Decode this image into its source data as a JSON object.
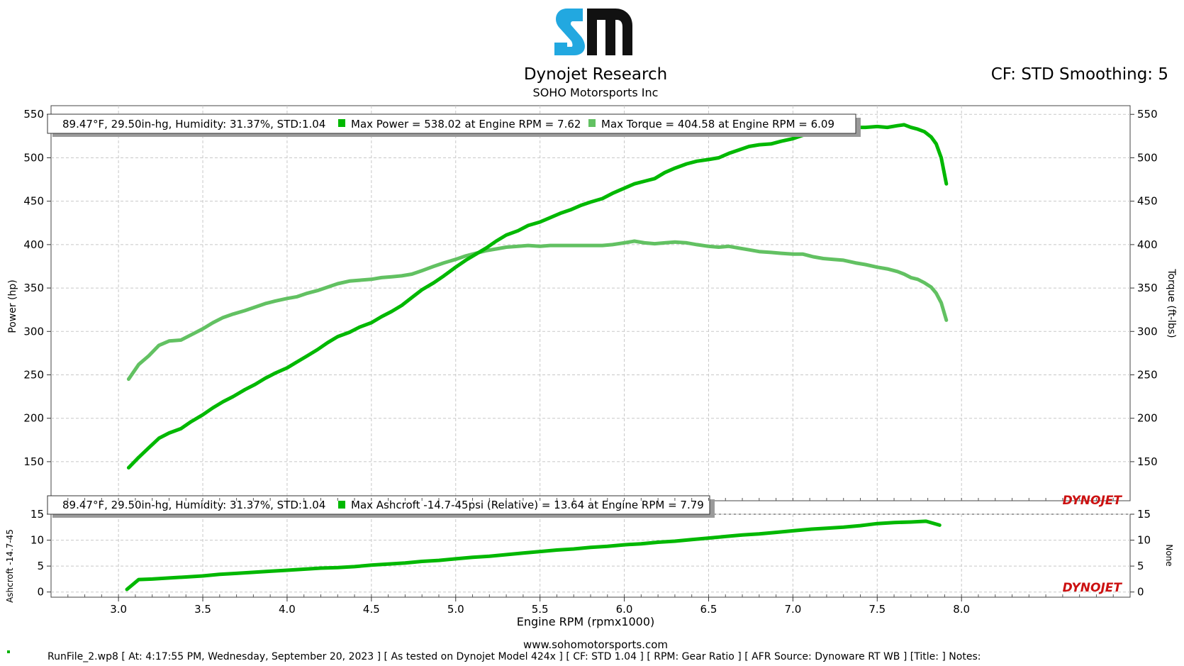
{
  "header": {
    "company": "Dynojet Research",
    "dealer": "SOHO Motorsports Inc",
    "cf_info": "CF: STD Smoothing: 5",
    "logo_text": "SM"
  },
  "colors": {
    "power": "#00b800",
    "torque": "#62c162",
    "ashcroft": "#00b800",
    "grid": "#c8c8c8",
    "brand_red": "#cc1111",
    "logo_blue": "#22a8e0"
  },
  "chart_data": [
    {
      "type": "line",
      "xlabel": "Engine RPM (rpmx1000)",
      "ylabel_left": "Power (hp)",
      "ylabel_right": "Torque (ft-lbs)",
      "xlim": [
        2.6,
        9.0
      ],
      "ylim": [
        105,
        560
      ],
      "xticks": [
        "3.0",
        "3.5",
        "4.0",
        "4.5",
        "5.0",
        "5.5",
        "6.0",
        "6.5",
        "7.0",
        "7.5",
        "8.0"
      ],
      "yticks": [
        "150",
        "200",
        "250",
        "300",
        "350",
        "400",
        "450",
        "500",
        "550"
      ],
      "grid": true,
      "legend_text": {
        "conditions": "89.47°F, 29.50in-hg, Humidity: 31.37%, STD:1.04",
        "power": "Max Power = 538.02 at Engine RPM = 7.62",
        "torque": "Max Torque = 404.58 at Engine RPM = 6.09"
      },
      "watermark": "DYNOJET",
      "series": [
        {
          "name": "Power",
          "x": [
            3.06,
            3.12,
            3.18,
            3.24,
            3.3,
            3.37,
            3.43,
            3.5,
            3.56,
            3.62,
            3.68,
            3.75,
            3.81,
            3.87,
            3.93,
            4.0,
            4.06,
            4.12,
            4.18,
            4.24,
            4.3,
            4.37,
            4.43,
            4.5,
            4.56,
            4.62,
            4.68,
            4.74,
            4.8,
            4.87,
            4.93,
            5.0,
            5.06,
            5.12,
            5.18,
            5.24,
            5.3,
            5.37,
            5.43,
            5.5,
            5.56,
            5.62,
            5.68,
            5.74,
            5.8,
            5.87,
            5.93,
            6.0,
            6.06,
            6.12,
            6.18,
            6.24,
            6.3,
            6.37,
            6.43,
            6.5,
            6.56,
            6.62,
            6.68,
            6.74,
            6.8,
            6.87,
            6.93,
            7.0,
            7.06,
            7.12,
            7.18,
            7.24,
            7.3,
            7.37,
            7.43,
            7.5,
            7.56,
            7.62,
            7.66,
            7.7,
            7.74,
            7.78,
            7.82,
            7.85,
            7.88,
            7.91
          ],
          "values": [
            143,
            155,
            166,
            177,
            183,
            188,
            196,
            204,
            212,
            219,
            225,
            233,
            239,
            246,
            252,
            258,
            265,
            272,
            279,
            287,
            294,
            299,
            305,
            310,
            317,
            323,
            330,
            339,
            348,
            356,
            364,
            374,
            382,
            389,
            396,
            404,
            411,
            416,
            422,
            426,
            431,
            436,
            440,
            445,
            449,
            453,
            459,
            465,
            470,
            473,
            476,
            483,
            488,
            493,
            496,
            498,
            500,
            505,
            509,
            513,
            515,
            516,
            519,
            522,
            526,
            527,
            527,
            530,
            532,
            535,
            535,
            536,
            535,
            537,
            538,
            535,
            533,
            530,
            524,
            516,
            500,
            470
          ]
        },
        {
          "name": "Torque",
          "x": [
            3.06,
            3.12,
            3.18,
            3.24,
            3.3,
            3.37,
            3.43,
            3.5,
            3.56,
            3.62,
            3.68,
            3.75,
            3.81,
            3.87,
            3.93,
            4.0,
            4.06,
            4.12,
            4.18,
            4.24,
            4.3,
            4.37,
            4.43,
            4.5,
            4.56,
            4.62,
            4.68,
            4.74,
            4.8,
            4.87,
            4.93,
            5.0,
            5.06,
            5.12,
            5.18,
            5.24,
            5.3,
            5.37,
            5.43,
            5.5,
            5.56,
            5.62,
            5.68,
            5.74,
            5.8,
            5.87,
            5.93,
            6.0,
            6.06,
            6.12,
            6.18,
            6.24,
            6.3,
            6.37,
            6.43,
            6.5,
            6.56,
            6.62,
            6.68,
            6.74,
            6.8,
            6.87,
            6.93,
            7.0,
            7.06,
            7.12,
            7.18,
            7.24,
            7.3,
            7.37,
            7.43,
            7.5,
            7.56,
            7.62,
            7.66,
            7.7,
            7.74,
            7.78,
            7.82,
            7.85,
            7.88,
            7.91
          ],
          "values": [
            245,
            262,
            272,
            284,
            289,
            290,
            296,
            303,
            310,
            316,
            320,
            324,
            328,
            332,
            335,
            338,
            340,
            344,
            347,
            351,
            355,
            358,
            359,
            360,
            362,
            363,
            364,
            366,
            370,
            375,
            379,
            383,
            387,
            390,
            393,
            395,
            397,
            398,
            399,
            398,
            399,
            399,
            399,
            399,
            399,
            399,
            400,
            402,
            404,
            402,
            401,
            402,
            403,
            402,
            400,
            398,
            397,
            398,
            396,
            394,
            392,
            391,
            390,
            389,
            389,
            386,
            384,
            383,
            382,
            379,
            377,
            374,
            372,
            369,
            366,
            362,
            360,
            356,
            351,
            344,
            333,
            313
          ]
        }
      ]
    },
    {
      "type": "line",
      "ylabel_left": "Ashcroft -14.7-45",
      "ylabel_right": "None",
      "xlim": [
        2.6,
        9.0
      ],
      "ylim": [
        -1,
        15
      ],
      "yticks": [
        "0",
        "5",
        "10",
        "15"
      ],
      "grid": true,
      "legend_text": {
        "conditions": "89.47°F, 29.50in-hg, Humidity: 31.37%, STD:1.04",
        "ashcroft": "Max Ashcroft -14.7-45psi (Relative) = 13.64 at Engine RPM = 7.79"
      },
      "watermark": "DYNOJET",
      "series": [
        {
          "name": "Ashcroft",
          "x": [
            3.05,
            3.12,
            3.2,
            3.3,
            3.4,
            3.5,
            3.6,
            3.7,
            3.8,
            3.9,
            4.0,
            4.1,
            4.2,
            4.3,
            4.4,
            4.5,
            4.6,
            4.7,
            4.8,
            4.9,
            5.0,
            5.1,
            5.2,
            5.3,
            5.4,
            5.5,
            5.6,
            5.7,
            5.8,
            5.9,
            6.0,
            6.1,
            6.2,
            6.3,
            6.4,
            6.5,
            6.6,
            6.7,
            6.8,
            6.9,
            7.0,
            7.1,
            7.2,
            7.3,
            7.4,
            7.5,
            7.6,
            7.7,
            7.79,
            7.87
          ],
          "values": [
            0.5,
            2.4,
            2.5,
            2.7,
            2.9,
            3.1,
            3.4,
            3.6,
            3.8,
            4.0,
            4.2,
            4.4,
            4.6,
            4.7,
            4.9,
            5.2,
            5.4,
            5.6,
            5.9,
            6.1,
            6.4,
            6.7,
            6.9,
            7.2,
            7.5,
            7.8,
            8.1,
            8.3,
            8.6,
            8.8,
            9.1,
            9.3,
            9.6,
            9.8,
            10.1,
            10.4,
            10.7,
            11.0,
            11.2,
            11.5,
            11.8,
            12.1,
            12.3,
            12.5,
            12.8,
            13.2,
            13.4,
            13.5,
            13.64,
            12.9
          ]
        }
      ]
    }
  ],
  "footer": {
    "website": "www.sohomotorsports.com",
    "run_info": "RunFile_2.wp8 [ At: 4:17:55 PM, Wednesday, September 20, 2023 ] [ As tested on Dynojet Model 424x ] [ CF: STD 1.04 ] [ RPM: Gear Ratio ] [ AFR Source: Dynoware RT WB ] [Title: ]  Notes:"
  }
}
